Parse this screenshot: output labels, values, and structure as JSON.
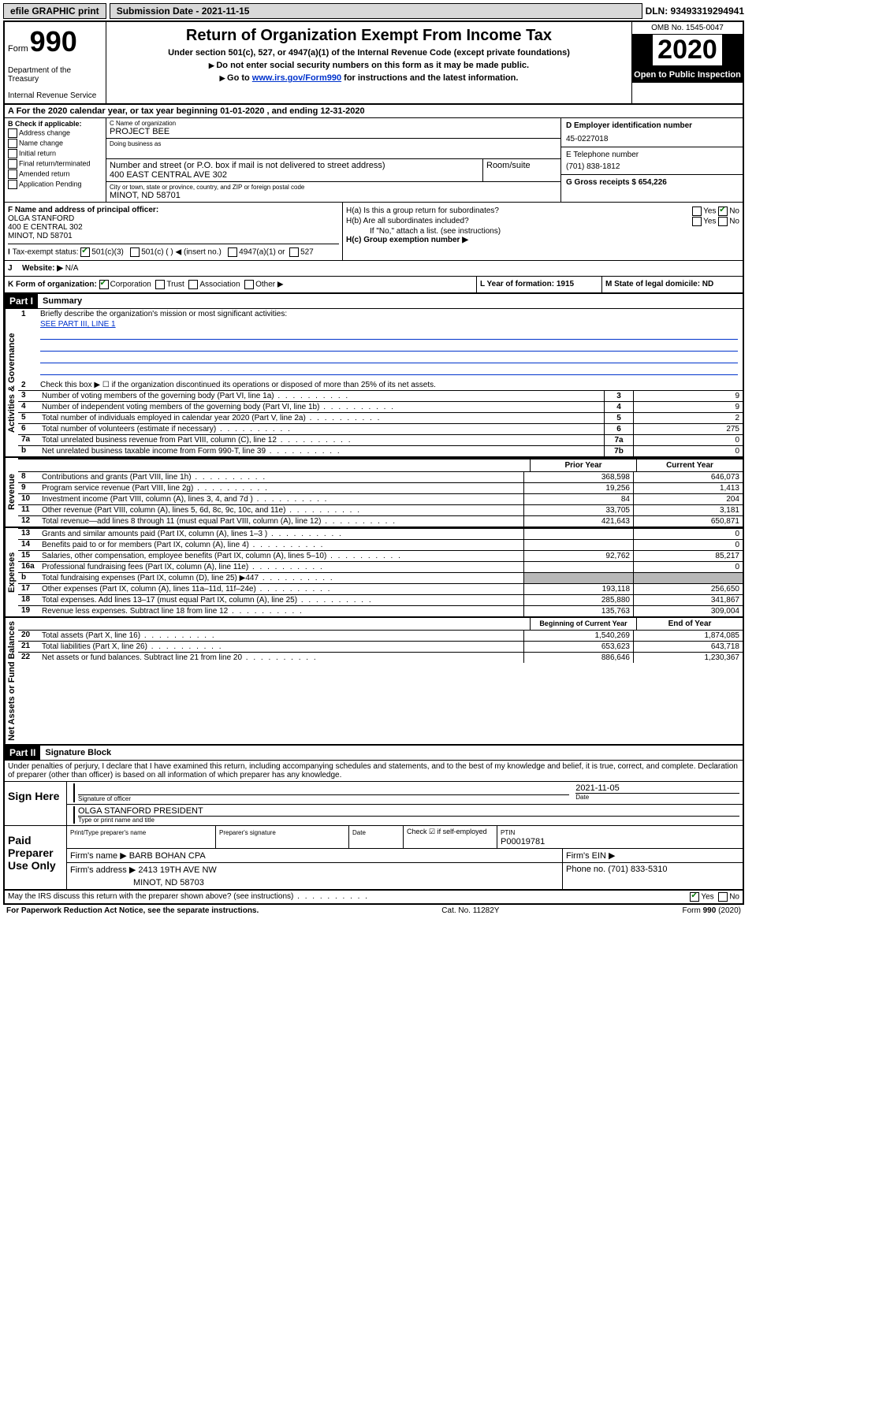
{
  "topbar": {
    "efile": "efile GRAPHIC print",
    "submission": "Submission Date - 2021-11-15",
    "dln": "DLN: 93493319294941"
  },
  "header": {
    "form_word": "Form",
    "form_num": "990",
    "dept": "Department of the Treasury",
    "irs": "Internal Revenue Service",
    "title": "Return of Organization Exempt From Income Tax",
    "sub": "Under section 501(c), 527, or 4947(a)(1) of the Internal Revenue Code (except private foundations)",
    "line1": "Do not enter social security numbers on this form as it may be made public.",
    "line2_pre": "Go to ",
    "line2_link": "www.irs.gov/Form990",
    "line2_post": " for instructions and the latest information.",
    "omb": "OMB No. 1545-0047",
    "year": "2020",
    "open": "Open to Public Inspection"
  },
  "rowA": "A For the 2020 calendar year, or tax year beginning 01-01-2020   , and ending 12-31-2020",
  "boxB": {
    "title": "B Check if applicable:",
    "items": [
      "Address change",
      "Name change",
      "Initial return",
      "Final return/terminated",
      "Amended return",
      "Application Pending"
    ]
  },
  "boxC": {
    "name_lbl": "C Name of organization",
    "name": "PROJECT BEE",
    "dba_lbl": "Doing business as",
    "street_lbl": "Number and street (or P.O. box if mail is not delivered to street address)",
    "street": "400 EAST CENTRAL AVE 302",
    "suite_lbl": "Room/suite",
    "city_lbl": "City or town, state or province, country, and ZIP or foreign postal code",
    "city": "MINOT, ND  58701"
  },
  "boxD": {
    "lbl": "D Employer identification number",
    "val": "45-0227018"
  },
  "boxE": {
    "lbl": "E Telephone number",
    "val": "(701) 838-1812"
  },
  "boxG": {
    "lbl": "G Gross receipts $ 654,226"
  },
  "boxF": {
    "lbl": "F Name and address of principal officer:",
    "name": "OLGA STANFORD",
    "addr1": "400 E CENTRAL 302",
    "addr2": "MINOT, ND  58701"
  },
  "boxH": {
    "a": "H(a)  Is this a group return for subordinates?",
    "b": "H(b)  Are all subordinates included?",
    "note": "If \"No,\" attach a list. (see instructions)",
    "c": "H(c)  Group exemption number ▶"
  },
  "rowI": {
    "lbl": "Tax-exempt status:",
    "o1": "501(c)(3)",
    "o2": "501(c) (  ) ◀ (insert no.)",
    "o3": "4947(a)(1) or",
    "o4": "527"
  },
  "rowJ": {
    "lbl": "Website: ▶",
    "val": "N/A"
  },
  "rowK": {
    "lbl": "K Form of organization:",
    "opts": [
      "Corporation",
      "Trust",
      "Association",
      "Other ▶"
    ],
    "l": "L Year of formation: 1915",
    "m": "M State of legal domicile: ND"
  },
  "part1": {
    "header": "Part I",
    "title": "Summary",
    "vlabel1": "Activities & Governance",
    "vlabel2": "Revenue",
    "vlabel3": "Expenses",
    "vlabel4": "Net Assets or Fund Balances",
    "q1": "Briefly describe the organization's mission or most significant activities:",
    "q1_val": "SEE PART III, LINE 1",
    "q2": "Check this box ▶ ☐  if the organization discontinued its operations or disposed of more than 25% of its net assets.",
    "rows_gov": [
      {
        "n": "3",
        "t": "Number of voting members of the governing body (Part VI, line 1a)",
        "box": "3",
        "v": "9"
      },
      {
        "n": "4",
        "t": "Number of independent voting members of the governing body (Part VI, line 1b)",
        "box": "4",
        "v": "9"
      },
      {
        "n": "5",
        "t": "Total number of individuals employed in calendar year 2020 (Part V, line 2a)",
        "box": "5",
        "v": "2"
      },
      {
        "n": "6",
        "t": "Total number of volunteers (estimate if necessary)",
        "box": "6",
        "v": "275"
      },
      {
        "n": "7a",
        "t": "Total unrelated business revenue from Part VIII, column (C), line 12",
        "box": "7a",
        "v": "0"
      },
      {
        "n": "b",
        "t": "Net unrelated business taxable income from Form 990-T, line 39",
        "box": "7b",
        "v": "0"
      }
    ],
    "col_h1": "Prior Year",
    "col_h2": "Current Year",
    "rows_rev": [
      {
        "n": "8",
        "t": "Contributions and grants (Part VIII, line 1h)",
        "c1": "368,598",
        "c2": "646,073"
      },
      {
        "n": "9",
        "t": "Program service revenue (Part VIII, line 2g)",
        "c1": "19,256",
        "c2": "1,413"
      },
      {
        "n": "10",
        "t": "Investment income (Part VIII, column (A), lines 3, 4, and 7d )",
        "c1": "84",
        "c2": "204"
      },
      {
        "n": "11",
        "t": "Other revenue (Part VIII, column (A), lines 5, 6d, 8c, 9c, 10c, and 11e)",
        "c1": "33,705",
        "c2": "3,181"
      },
      {
        "n": "12",
        "t": "Total revenue—add lines 8 through 11 (must equal Part VIII, column (A), line 12)",
        "c1": "421,643",
        "c2": "650,871"
      }
    ],
    "rows_exp": [
      {
        "n": "13",
        "t": "Grants and similar amounts paid (Part IX, column (A), lines 1–3 )",
        "c1": "",
        "c2": "0"
      },
      {
        "n": "14",
        "t": "Benefits paid to or for members (Part IX, column (A), line 4)",
        "c1": "",
        "c2": "0"
      },
      {
        "n": "15",
        "t": "Salaries, other compensation, employee benefits (Part IX, column (A), lines 5–10)",
        "c1": "92,762",
        "c2": "85,217"
      },
      {
        "n": "16a",
        "t": "Professional fundraising fees (Part IX, column (A), line 11e)",
        "c1": "",
        "c2": "0"
      },
      {
        "n": "b",
        "t": "Total fundraising expenses (Part IX, column (D), line 25) ▶447",
        "c1": "SHADE",
        "c2": "SHADE"
      },
      {
        "n": "17",
        "t": "Other expenses (Part IX, column (A), lines 11a–11d, 11f–24e)",
        "c1": "193,118",
        "c2": "256,650"
      },
      {
        "n": "18",
        "t": "Total expenses. Add lines 13–17 (must equal Part IX, column (A), line 25)",
        "c1": "285,880",
        "c2": "341,867"
      },
      {
        "n": "19",
        "t": "Revenue less expenses. Subtract line 18 from line 12",
        "c1": "135,763",
        "c2": "309,004"
      }
    ],
    "col_h3": "Beginning of Current Year",
    "col_h4": "End of Year",
    "rows_net": [
      {
        "n": "20",
        "t": "Total assets (Part X, line 16)",
        "c1": "1,540,269",
        "c2": "1,874,085"
      },
      {
        "n": "21",
        "t": "Total liabilities (Part X, line 26)",
        "c1": "653,623",
        "c2": "643,718"
      },
      {
        "n": "22",
        "t": "Net assets or fund balances. Subtract line 21 from line 20",
        "c1": "886,646",
        "c2": "1,230,367"
      }
    ]
  },
  "part2": {
    "header": "Part II",
    "title": "Signature Block",
    "perjury": "Under penalties of perjury, I declare that I have examined this return, including accompanying schedules and statements, and to the best of my knowledge and belief, it is true, correct, and complete. Declaration of preparer (other than officer) is based on all information of which preparer has any knowledge.",
    "sign_here": "Sign Here",
    "sig_officer_lbl": "Signature of officer",
    "date_lbl": "Date",
    "sig_date": "2021-11-05",
    "name_title": "OLGA STANFORD PRESIDENT",
    "name_title_lbl": "Type or print name and title",
    "paid": "Paid Preparer Use Only",
    "prep_name_lbl": "Print/Type preparer's name",
    "prep_sig_lbl": "Preparer's signature",
    "prep_date_lbl": "Date",
    "chk_self": "Check ☑ if self-employed",
    "ptin_lbl": "PTIN",
    "ptin": "P00019781",
    "firm_name_lbl": "Firm's name  ▶",
    "firm_name": "BARB BOHAN CPA",
    "firm_ein_lbl": "Firm's EIN ▶",
    "firm_addr_lbl": "Firm's address ▶",
    "firm_addr1": "2413 19TH AVE NW",
    "firm_addr2": "MINOT, ND  58703",
    "phone_lbl": "Phone no. (701) 833-5310",
    "discuss": "May the IRS discuss this return with the preparer shown above? (see instructions)"
  },
  "footer": {
    "paperwork": "For Paperwork Reduction Act Notice, see the separate instructions.",
    "cat": "Cat. No. 11282Y",
    "form": "Form 990 (2020)"
  }
}
